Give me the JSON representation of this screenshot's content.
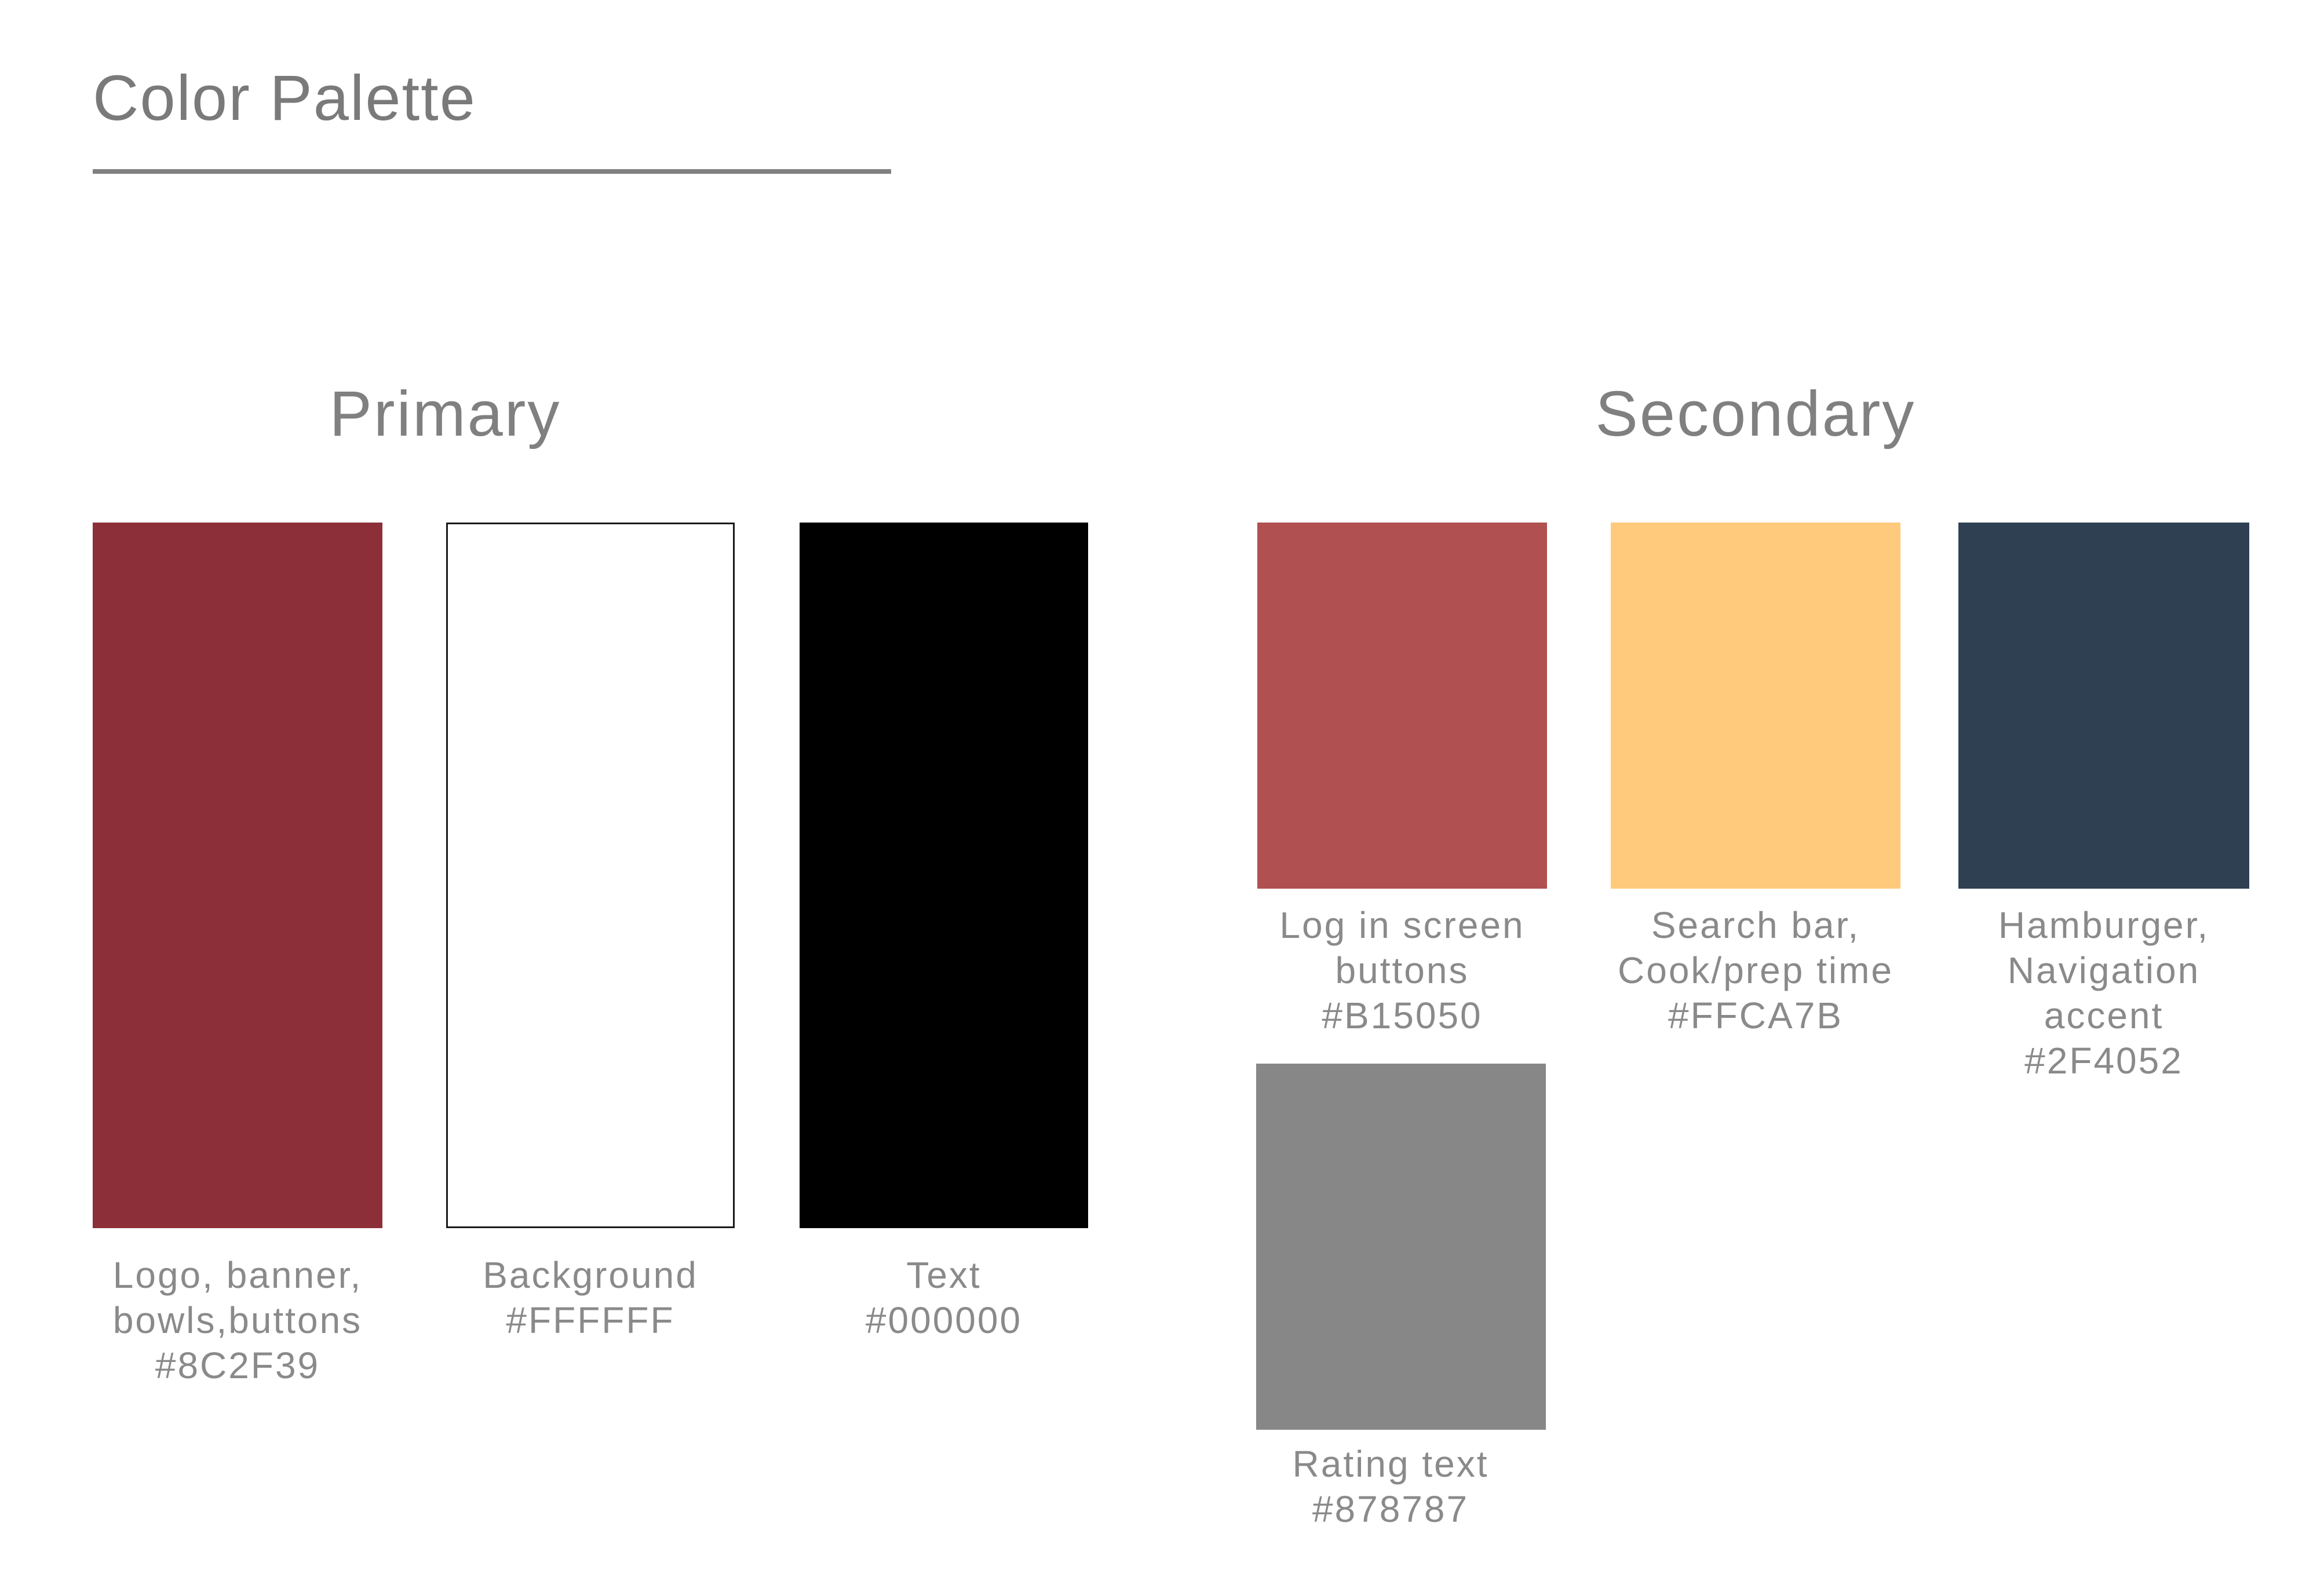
{
  "title": "Color Palette",
  "primary": {
    "heading": "Primary",
    "swatches": [
      {
        "color": "#8C2F39",
        "outlined": false,
        "lines": [
          "Logo, banner,",
          "bowls,buttons",
          "#8C2F39"
        ]
      },
      {
        "color": "#FFFFFF",
        "outlined": true,
        "lines": [
          "Background",
          "#FFFFFF"
        ]
      },
      {
        "color": "#000000",
        "outlined": false,
        "lines": [
          "Text",
          "#000000"
        ]
      }
    ]
  },
  "secondary": {
    "heading": "Secondary",
    "swatches": [
      {
        "color": "#B15050",
        "outlined": false,
        "lines": [
          "Log in screen",
          "buttons",
          "#B15050"
        ]
      },
      {
        "color": "#FFCA7B",
        "outlined": false,
        "lines": [
          "Search bar,",
          "Cook/prep time",
          "#FFCA7B"
        ]
      },
      {
        "color": "#2F4052",
        "outlined": false,
        "lines": [
          "Hamburger,",
          "Navigation",
          "accent",
          "#2F4052"
        ]
      },
      {
        "color": "#878787",
        "outlined": false,
        "lines": [
          "Rating text",
          "#878787"
        ]
      }
    ]
  }
}
